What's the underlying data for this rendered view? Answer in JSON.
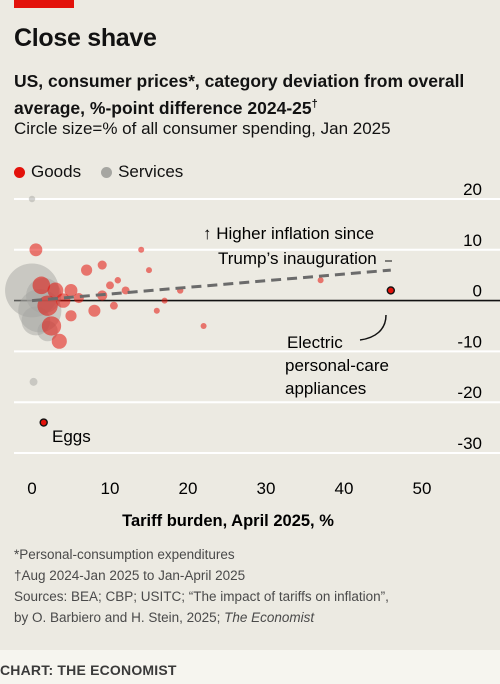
{
  "header": {
    "title": "Close shave",
    "subtitle": "US, consumer prices*, category deviation from overall average, %-point difference 2024-25",
    "subtitle_dagger": "†",
    "note": "Circle size=% of all consumer spending, Jan 2025"
  },
  "legend": [
    {
      "label": "Goods",
      "color": "#e3120b"
    },
    {
      "label": "Services",
      "color": "#a6a6a1"
    }
  ],
  "annotations": {
    "higher_line1": "↑ Higher inflation since",
    "higher_line2": "Trump’s inauguration",
    "electric_line1": "Electric",
    "electric_line2": "personal-care",
    "electric_line3": "appliances",
    "eggs": "Eggs"
  },
  "footnotes": {
    "f1": "*Personal-consumption expenditures",
    "f2": "†Aug 2024-Jan 2025 to Jan-April 2025",
    "f3": "Sources: BEA; CBP; USITC; “The impact of tariffs on inflation”,",
    "f4a": "by O. Barbiero and H. Stein, 2025; ",
    "f4b": "The Economist"
  },
  "credit": "CHART: THE ECONOMIST",
  "chart_data": {
    "type": "scatter",
    "xlabel": "Tariff burden, April 2025, %",
    "ylabel": "",
    "xlim": [
      0,
      55
    ],
    "ylim": [
      -30,
      20
    ],
    "xticks": [
      0,
      10,
      20,
      30,
      40,
      50
    ],
    "yticks": [
      20,
      10,
      0,
      -10,
      -20,
      -30
    ],
    "trend": {
      "x": [
        0,
        46
      ],
      "y": [
        0,
        6
      ]
    },
    "services": [
      {
        "x": 0,
        "y": 20,
        "size": 0.2
      },
      {
        "x": 0,
        "y": 2,
        "size": 14
      },
      {
        "x": 1,
        "y": -2,
        "size": 9
      },
      {
        "x": 1.5,
        "y": 1,
        "size": 6
      },
      {
        "x": 0.5,
        "y": -4,
        "size": 4
      },
      {
        "x": 2,
        "y": -6,
        "size": 2
      },
      {
        "x": 0.2,
        "y": -16,
        "size": 0.3
      }
    ],
    "goods": [
      {
        "x": 0.5,
        "y": 10,
        "size": 0.8
      },
      {
        "x": 1.2,
        "y": 3,
        "size": 1.5
      },
      {
        "x": 2,
        "y": -1,
        "size": 2
      },
      {
        "x": 3,
        "y": 2,
        "size": 1.2
      },
      {
        "x": 2.5,
        "y": -5,
        "size": 1.8
      },
      {
        "x": 4,
        "y": 0,
        "size": 1
      },
      {
        "x": 3.5,
        "y": -8,
        "size": 1.1
      },
      {
        "x": 5,
        "y": 2,
        "size": 0.8
      },
      {
        "x": 5,
        "y": -3,
        "size": 0.6
      },
      {
        "x": 6,
        "y": 0.5,
        "size": 0.5
      },
      {
        "x": 7,
        "y": 6,
        "size": 0.6
      },
      {
        "x": 8,
        "y": -2,
        "size": 0.7
      },
      {
        "x": 9,
        "y": 7,
        "size": 0.4
      },
      {
        "x": 9,
        "y": 1,
        "size": 0.5
      },
      {
        "x": 10,
        "y": 3,
        "size": 0.3
      },
      {
        "x": 10.5,
        "y": -1,
        "size": 0.3
      },
      {
        "x": 11,
        "y": 4,
        "size": 0.2
      },
      {
        "x": 12,
        "y": 2,
        "size": 0.3
      },
      {
        "x": 14,
        "y": 10,
        "size": 0.15
      },
      {
        "x": 15,
        "y": 6,
        "size": 0.1
      },
      {
        "x": 16,
        "y": -2,
        "size": 0.1
      },
      {
        "x": 17,
        "y": 0,
        "size": 0.08
      },
      {
        "x": 19,
        "y": 2,
        "size": 0.2
      },
      {
        "x": 22,
        "y": -5,
        "size": 0.07
      },
      {
        "x": 37,
        "y": 4,
        "size": 0.03
      },
      {
        "x": 46,
        "y": 2,
        "size": 0.05,
        "outlined": true
      },
      {
        "x": 1.5,
        "y": -24,
        "size": 0.03,
        "outlined": true
      }
    ]
  }
}
